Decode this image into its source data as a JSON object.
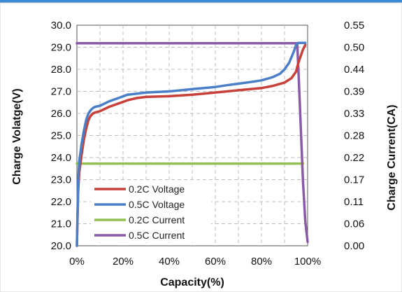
{
  "chart_data": {
    "type": "line",
    "xlabel": "Capacity(%)",
    "ylabel_left": "Charge Volatge(V)",
    "ylabel_right": "Charge Current(CA)",
    "x_ticks": [
      "0%",
      "20%",
      "40%",
      "60%",
      "80%",
      "100%"
    ],
    "y_left_ticks": [
      "20.0",
      "21.0",
      "22.0",
      "23.0",
      "24.0",
      "25.0",
      "26.0",
      "27.0",
      "28.0",
      "29.0",
      "30.0"
    ],
    "y_right_ticks": [
      "0.00",
      "0.06",
      "0.11",
      "0.17",
      "0.22",
      "0.28",
      "0.33",
      "0.39",
      "0.44",
      "0.50",
      "0.55"
    ],
    "xlim": [
      0,
      100
    ],
    "ylim_left": [
      20,
      30
    ],
    "ylim_right": [
      0,
      0.55
    ],
    "grid": true,
    "legend_position": "bottom-left",
    "series": [
      {
        "name": "0.2C Voltage",
        "axis": "left",
        "color": "#c8403a",
        "x": [
          0,
          0.5,
          1,
          2,
          3,
          4,
          5,
          6,
          7,
          8,
          10,
          14,
          18,
          22,
          26,
          30,
          40,
          50,
          55,
          60,
          65,
          70,
          80,
          85,
          90,
          93,
          95,
          96,
          97,
          98,
          99
        ],
        "y": [
          20.0,
          22.4,
          23.3,
          24.1,
          24.8,
          25.3,
          25.7,
          25.9,
          26.0,
          26.05,
          26.1,
          26.3,
          26.45,
          26.6,
          26.7,
          26.75,
          26.78,
          26.85,
          26.9,
          26.95,
          27.0,
          27.05,
          27.15,
          27.25,
          27.4,
          27.6,
          27.9,
          28.3,
          28.6,
          28.9,
          29.1
        ]
      },
      {
        "name": "0.5C Voltage",
        "axis": "left",
        "color": "#4a7fc8",
        "x": [
          0,
          0.5,
          1,
          2,
          3,
          4,
          5,
          6,
          7,
          8,
          10,
          14,
          18,
          22,
          26,
          30,
          40,
          50,
          55,
          60,
          65,
          70,
          75,
          80,
          85,
          88,
          90,
          92,
          94,
          95,
          96,
          97,
          98,
          99
        ],
        "y": [
          20.0,
          22.8,
          23.8,
          24.6,
          25.2,
          25.7,
          26.0,
          26.15,
          26.25,
          26.3,
          26.35,
          26.55,
          26.7,
          26.85,
          26.9,
          26.95,
          27.0,
          27.1,
          27.15,
          27.2,
          27.28,
          27.35,
          27.42,
          27.5,
          27.65,
          27.8,
          28.0,
          28.3,
          28.8,
          29.1,
          29.2,
          29.2,
          29.2,
          29.2
        ]
      },
      {
        "name": "0.2C Current",
        "axis": "right",
        "color": "#93c150",
        "x": [
          0,
          98
        ],
        "y": [
          0.205,
          0.205
        ]
      },
      {
        "name": "0.5C Current",
        "axis": "right",
        "color": "#8a5aa8",
        "x": [
          0,
          95,
          95.5,
          96,
          97,
          98,
          99,
          100
        ],
        "y": [
          0.505,
          0.505,
          0.505,
          0.44,
          0.3,
          0.16,
          0.06,
          0.01
        ]
      }
    ]
  }
}
